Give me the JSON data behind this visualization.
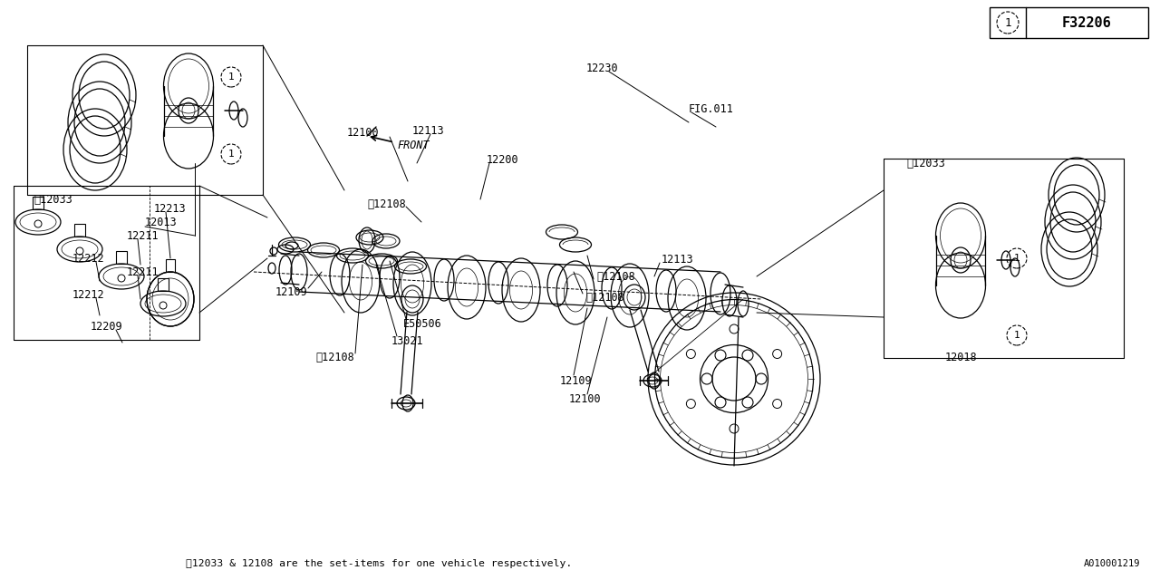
{
  "bg_color": "#ffffff",
  "line_color": "#000000",
  "fig_ref": "F32206",
  "part_ref": "A010001219",
  "footnote": "※12033 & 12108 are the set-items for one vehicle respectively.",
  "lw_main": 0.9,
  "lw_thin": 0.5,
  "fs_label": 8.5,
  "fs_small": 7.5
}
